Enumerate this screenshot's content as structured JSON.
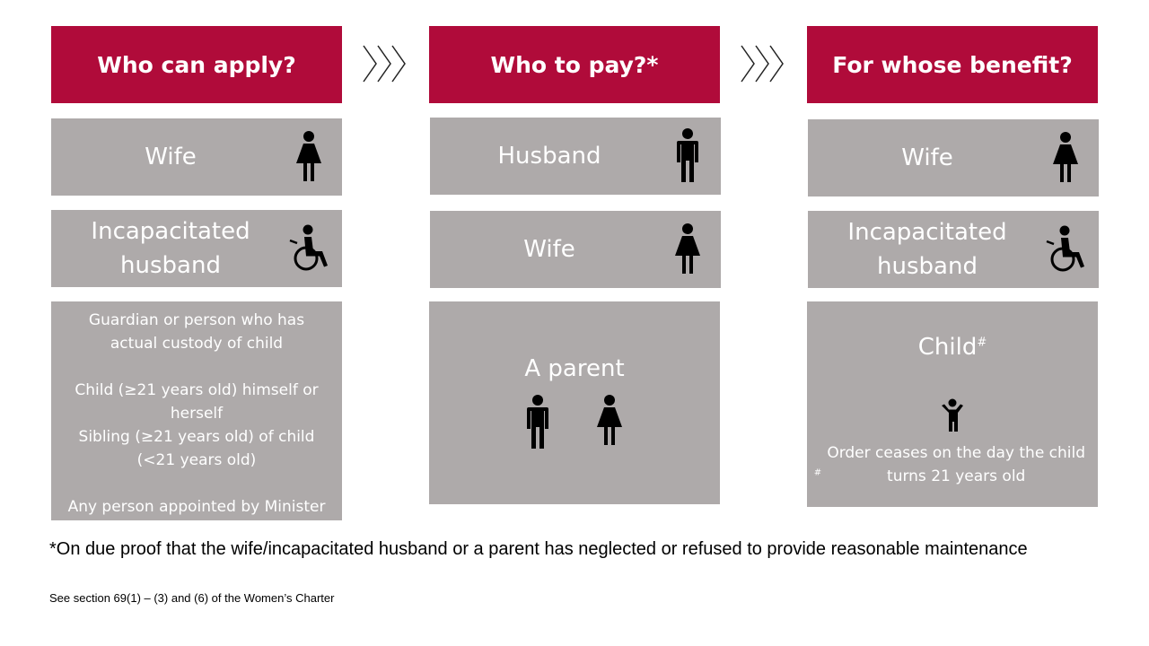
{
  "columns": [
    {
      "header": "Who can apply?",
      "rows": [
        {
          "label": "Wife",
          "icon": "woman-icon"
        },
        {
          "label": "Incapacitated husband",
          "icon": "wheelchair-icon"
        }
      ],
      "bottom": {
        "paragraphs": [
          "Guardian or  person who has actual custody of child",
          "Child (≥21 years old) himself or herself\nSibling (≥21 years old) of child (<21 years old)",
          "Any person appointed by Minister"
        ]
      }
    },
    {
      "header": "Who to pay?*",
      "rows": [
        {
          "label": "Husband",
          "icon": "man-icon"
        },
        {
          "label": "Wife",
          "icon": "woman-icon"
        }
      ],
      "bottom": {
        "title": "A parent",
        "icons": [
          "man-icon",
          "woman-icon"
        ]
      }
    },
    {
      "header": "For whose benefit?",
      "rows": [
        {
          "label": "Wife",
          "icon": "woman-icon"
        },
        {
          "label": "Incapacitated husband",
          "icon": "wheelchair-icon"
        }
      ],
      "bottom": {
        "title": "Child",
        "title_mark": "#",
        "icon": "child-icon",
        "note_mark": "#",
        "note": "Order ceases on the day the child turns 21 years old"
      }
    }
  ],
  "footnote": "*On due proof that the wife/incapacitated husband or a parent has neglected or refused to provide reasonable maintenance",
  "source": "See section 69(1) – (3) and (6) of the Women’s Charter",
  "colors": {
    "header": "#b00b3a",
    "box": "#aeaaaa",
    "icon": "#000000"
  }
}
